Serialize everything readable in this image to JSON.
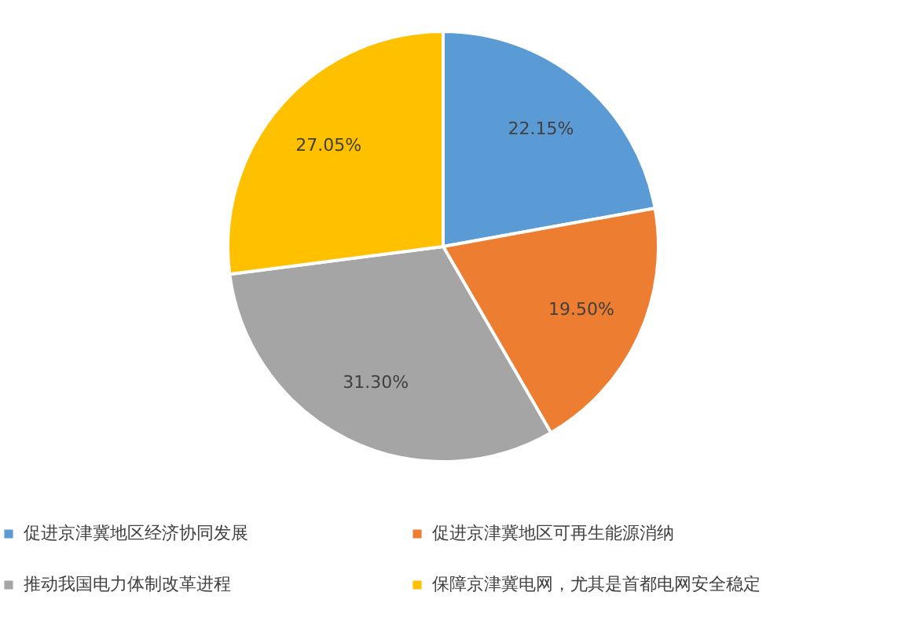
{
  "chart_data": {
    "type": "pie",
    "categories": [
      "促进京津冀地区经济协同发展",
      "促进京津冀地区可再生能源消纳",
      "推动我国电力体制改革进程",
      "保障京津冀电网，尤其是首都电网安全稳定"
    ],
    "values": [
      22.15,
      19.5,
      31.3,
      27.05
    ],
    "colors": [
      "#5b9bd5",
      "#ed7d31",
      "#a5a5a5",
      "#ffc000"
    ],
    "value_labels": [
      "22.15%",
      "19.50%",
      "31.30%",
      "27.05%"
    ],
    "legend": "bottom"
  }
}
